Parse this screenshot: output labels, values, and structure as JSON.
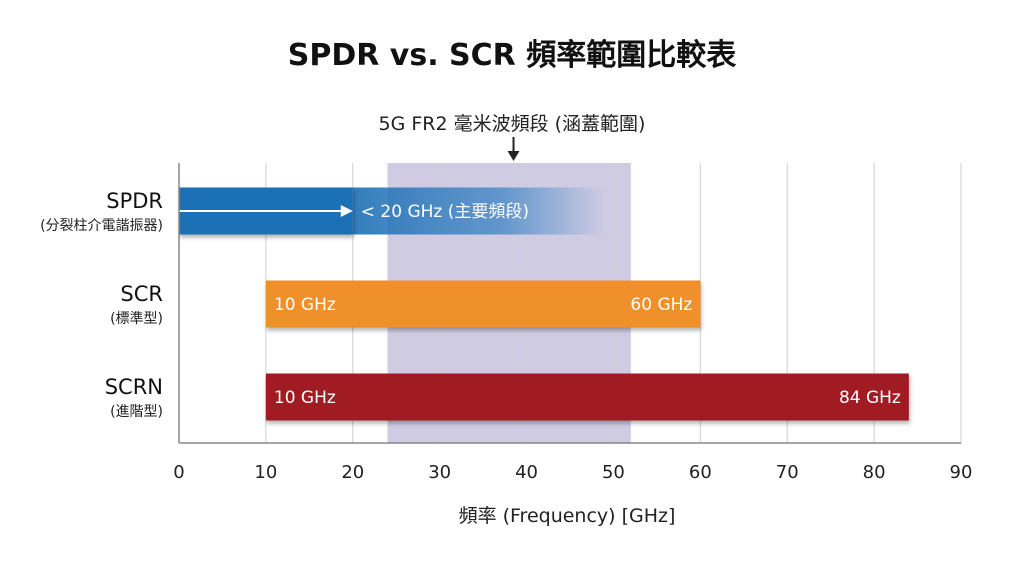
{
  "chart_data": {
    "type": "bar",
    "subtype": "horizontal-range",
    "title": "SPDR vs. SCR 頻率範圍比較表",
    "xlabel": "頻率 (Frequency) [GHz]",
    "xlim": [
      0,
      90
    ],
    "xticks": [
      0,
      10,
      20,
      30,
      40,
      50,
      60,
      70,
      80,
      90
    ],
    "grid": true,
    "band": {
      "label": "5G FR2 毫米波頻段 (涵蓋範圍)",
      "start": 24,
      "end": 52,
      "arrow_at": 38.5,
      "color": "#cfcbe3"
    },
    "series": [
      {
        "name": "SPDR",
        "sub": "(分裂柱介電諧振器)",
        "start": 0,
        "end": 20,
        "fade_end": 49,
        "color": "#1b6fb5",
        "label": "< 20 GHz (主要頻段)"
      },
      {
        "name": "SCR",
        "sub": "(標準型)",
        "start": 10,
        "end": 60,
        "color": "#f0902a",
        "start_label": "10 GHz",
        "end_label": "60 GHz"
      },
      {
        "name": "SCRN",
        "sub": "(進階型)",
        "start": 10,
        "end": 84,
        "color": "#a01c24",
        "start_label": "10 GHz",
        "end_label": "84 GHz"
      }
    ]
  }
}
